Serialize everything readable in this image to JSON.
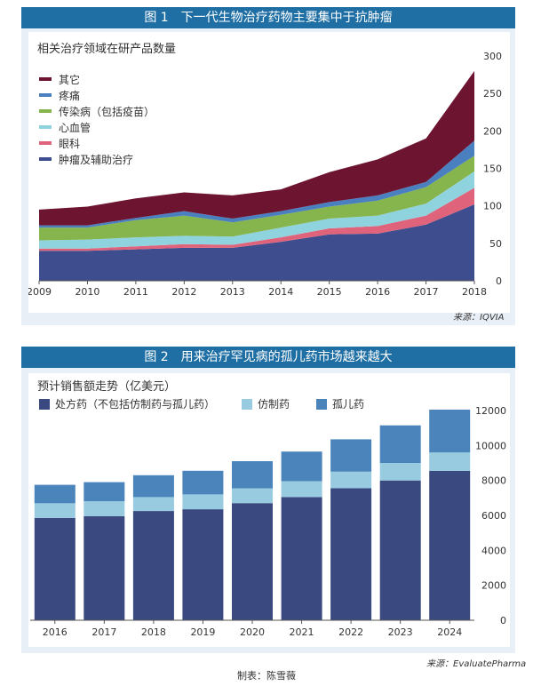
{
  "colors": {
    "panel_bg": "#e9eff6",
    "title_bar": "#1f6fa5",
    "other": "#6d1430",
    "pain": "#4a7fc0",
    "infectious": "#86b44d",
    "cardio": "#8fd3df",
    "ophthalmology": "#e0637c",
    "oncology": "#3e4d8e",
    "prescription": "#3a4a80",
    "generic": "#98cbe0",
    "orphan": "#4a84bb"
  },
  "figure1": {
    "title": "图 1　下一代生物治疗药物主要集中于抗肿瘤",
    "subtitle": "相关治疗领域在研产品数量",
    "source": "来源：IQVIA",
    "chart_data": {
      "type": "area",
      "stacked": true,
      "x": [
        "2009",
        "2010",
        "2011",
        "2012",
        "2013",
        "2014",
        "2015",
        "2016",
        "2017",
        "2018"
      ],
      "ylim": [
        0,
        300
      ],
      "yticks": [
        "0",
        "50",
        "100",
        "150",
        "200",
        "250",
        "300"
      ],
      "series": [
        {
          "name": "肿瘤及辅助治疗",
          "color": "#3e4d8e",
          "values": [
            40,
            40,
            42,
            44,
            44,
            52,
            62,
            63,
            75,
            102
          ]
        },
        {
          "name": "眼科",
          "color": "#e0637c",
          "values": [
            3,
            3,
            4,
            5,
            4,
            6,
            8,
            10,
            12,
            22
          ]
        },
        {
          "name": "心血管",
          "color": "#8fd3df",
          "values": [
            11,
            12,
            12,
            11,
            11,
            13,
            13,
            14,
            16,
            22
          ]
        },
        {
          "name": "传染病（包括疫苗）",
          "color": "#86b44d",
          "values": [
            17,
            16,
            23,
            27,
            19,
            17,
            16,
            20,
            22,
            21
          ]
        },
        {
          "name": "疼痛",
          "color": "#4a7fc0",
          "values": [
            3,
            3,
            3,
            6,
            5,
            5,
            6,
            7,
            7,
            20
          ]
        },
        {
          "name": "其它",
          "color": "#6d1430",
          "values": [
            21,
            25,
            26,
            25,
            31,
            29,
            40,
            48,
            58,
            93
          ]
        }
      ]
    }
  },
  "figure2": {
    "title": "图 2　用来治疗罕见病的孤儿药市场越来越大",
    "subtitle": "预计销售额走势（亿美元）",
    "source": "来源：EvaluatePharma",
    "chart_data": {
      "type": "bar",
      "stacked": true,
      "categories": [
        "2016",
        "2017",
        "2018",
        "2019",
        "2020",
        "2021",
        "2022",
        "2023",
        "2024"
      ],
      "ylim": [
        0,
        12000
      ],
      "yticks": [
        "0",
        "2000",
        "4000",
        "6000",
        "8000",
        "10000",
        "12000"
      ],
      "series": [
        {
          "name": "处方药（不包括仿制药与孤儿药）",
          "color": "#3a4a80",
          "values": [
            5850,
            5950,
            6250,
            6350,
            6700,
            7050,
            7550,
            8000,
            8550
          ]
        },
        {
          "name": "仿制药",
          "color": "#98cbe0",
          "values": [
            850,
            850,
            800,
            850,
            850,
            900,
            950,
            1000,
            1050
          ]
        },
        {
          "name": "孤儿药",
          "color": "#4a84bb",
          "values": [
            1050,
            1100,
            1250,
            1350,
            1550,
            1700,
            1850,
            2150,
            2450
          ]
        }
      ]
    }
  },
  "credit": "制表：陈雪薇"
}
